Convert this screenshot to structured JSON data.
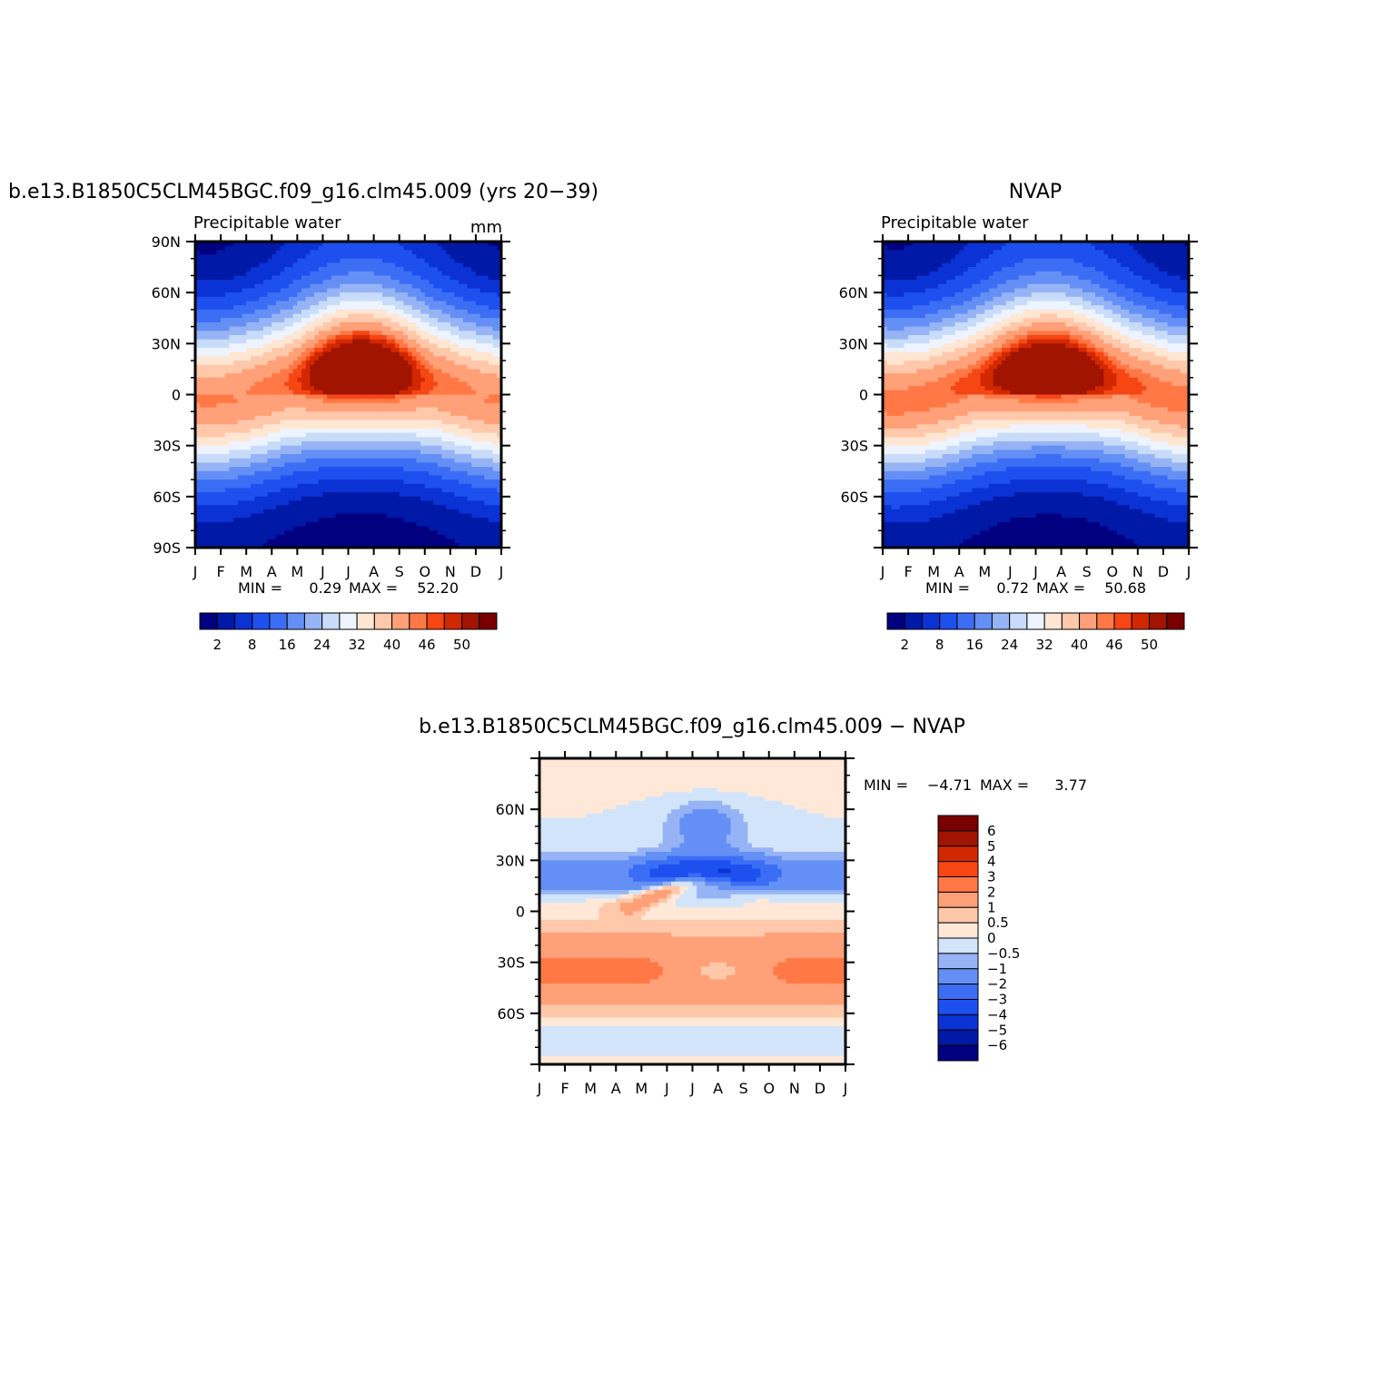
{
  "chart_data": [
    {
      "type": "heatmap",
      "id": "model",
      "title": "b.e13.B1850C5CLM45BGC.f09_g16.clm45.009 (yrs 20−39)",
      "subtitle": "Precipitable water",
      "units": "mm",
      "xlabel": "",
      "ylabel": "",
      "x_ticks": [
        "J",
        "F",
        "M",
        "A",
        "M",
        "J",
        "J",
        "A",
        "S",
        "O",
        "N",
        "D",
        "J"
      ],
      "y_ticks": [
        "90N",
        "60N",
        "30N",
        "0",
        "30S",
        "60S",
        "90S"
      ],
      "ylim": [
        -90,
        90
      ],
      "stats": {
        "min_label": "MIN =",
        "min": "0.29",
        "max_label": "MAX =",
        "max": "52.20"
      },
      "colorbar_labels": [
        "2",
        "8",
        "16",
        "24",
        "32",
        "40",
        "46",
        "50"
      ],
      "colorbar_levels": [
        2,
        5,
        8,
        12,
        16,
        20,
        24,
        28,
        32,
        36,
        40,
        44,
        46,
        48,
        50
      ],
      "fields": {
        "eq_peak": 52.2,
        "eq_base": 43,
        "pole_n_winter": 2.5,
        "pole_n_summer": 18,
        "pole_s_winter": 0.5,
        "pole_s_summer": 4.5,
        "itcz_amp": 9
      }
    },
    {
      "type": "heatmap",
      "id": "obs",
      "title": "NVAP",
      "subtitle": "Precipitable water",
      "units": "",
      "xlabel": "",
      "ylabel": "",
      "x_ticks": [
        "J",
        "F",
        "M",
        "A",
        "M",
        "J",
        "J",
        "A",
        "S",
        "O",
        "N",
        "D",
        "J"
      ],
      "y_ticks": [
        "",
        "60N",
        "30N",
        "0",
        "30S",
        "60S",
        ""
      ],
      "ylim": [
        -90,
        90
      ],
      "stats": {
        "min_label": "MIN =",
        "min": "0.72",
        "max_label": "MAX =",
        "max": "50.68"
      },
      "colorbar_labels": [
        "2",
        "8",
        "16",
        "24",
        "32",
        "40",
        "46",
        "50"
      ],
      "colorbar_levels": [
        2,
        5,
        8,
        12,
        16,
        20,
        24,
        28,
        32,
        36,
        40,
        44,
        46,
        48,
        50
      ],
      "fields": {
        "eq_peak": 50.68,
        "eq_base": 44,
        "pole_n_winter": 3,
        "pole_n_summer": 19,
        "pole_s_winter": 1,
        "pole_s_summer": 5,
        "itcz_amp": 8
      }
    },
    {
      "type": "heatmap",
      "id": "diff",
      "title": "b.e13.B1850C5CLM45BGC.f09_g16.clm45.009 − NVAP",
      "subtitle": "",
      "units": "",
      "xlabel": "",
      "ylabel": "",
      "x_ticks": [
        "J",
        "F",
        "M",
        "A",
        "M",
        "J",
        "J",
        "A",
        "S",
        "O",
        "N",
        "D",
        "J"
      ],
      "y_ticks": [
        "",
        "60N",
        "30N",
        "0",
        "30S",
        "60S",
        ""
      ],
      "ylim": [
        -90,
        90
      ],
      "stats": {
        "min_label": "MIN =",
        "min": "−4.71",
        "max_label": "MAX =",
        "max": "3.77"
      },
      "colorbar_labels": [
        "6",
        "5",
        "4",
        "3",
        "2",
        "1",
        "0.5",
        "0",
        "−0.5",
        "−1",
        "−2",
        "−3",
        "−4",
        "−5",
        "−6"
      ],
      "colorbar_levels": [
        -6,
        -5,
        -4,
        -3,
        -2,
        -1,
        -0.5,
        0,
        0.5,
        1,
        2,
        3,
        4,
        5,
        6
      ]
    }
  ],
  "colors": {
    "seq_palette": [
      "#000080",
      "#0019a6",
      "#0a32d4",
      "#1e50f0",
      "#3c6ef5",
      "#6490f5",
      "#96b4f5",
      "#c8dcfa",
      "#eef4ff",
      "#ffe6d2",
      "#ffc8aa",
      "#ffa078",
      "#ff7846",
      "#f54614",
      "#d22800",
      "#a01400",
      "#780000"
    ],
    "div_palette": [
      "#000080",
      "#0019a6",
      "#0a32d4",
      "#1e50f0",
      "#3c6ef5",
      "#6490f5",
      "#96b4f5",
      "#d2e4fa",
      "#ffe8d8",
      "#ffc8aa",
      "#ffa078",
      "#ff7846",
      "#f54614",
      "#d22800",
      "#a01400",
      "#780000"
    ]
  }
}
